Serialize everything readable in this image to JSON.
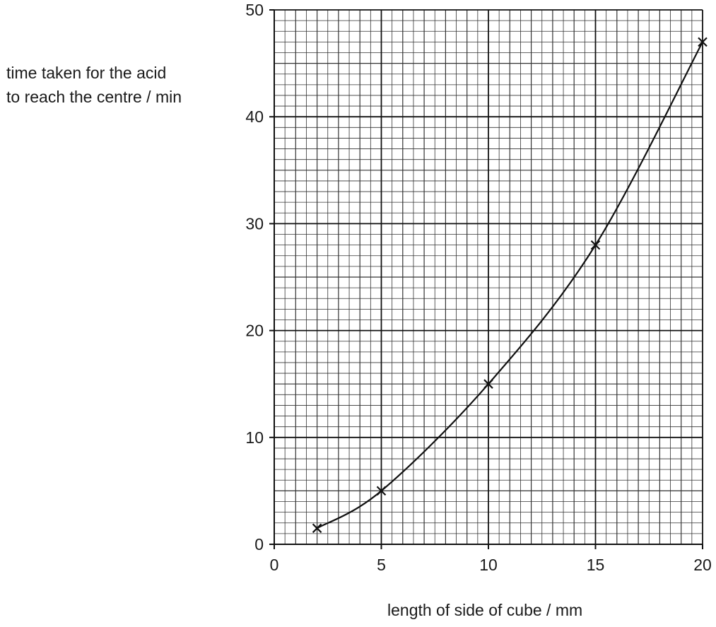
{
  "chart_data": {
    "type": "line",
    "title": "",
    "xlabel": "length of side of cube / mm",
    "ylabel": [
      "time taken for the acid",
      "to reach the centre / min"
    ],
    "xlim": [
      0,
      20
    ],
    "ylim": [
      0,
      50
    ],
    "x_ticks": [
      "0",
      "5",
      "10",
      "15",
      "20"
    ],
    "y_ticks": [
      "0",
      "10",
      "20",
      "30",
      "40",
      "50"
    ],
    "grid": true,
    "series": [
      {
        "x": [
          2,
          5,
          10,
          15,
          20
        ],
        "y": [
          1.5,
          5,
          15,
          28,
          47
        ],
        "marker": "cross",
        "curve": "smooth"
      }
    ]
  }
}
